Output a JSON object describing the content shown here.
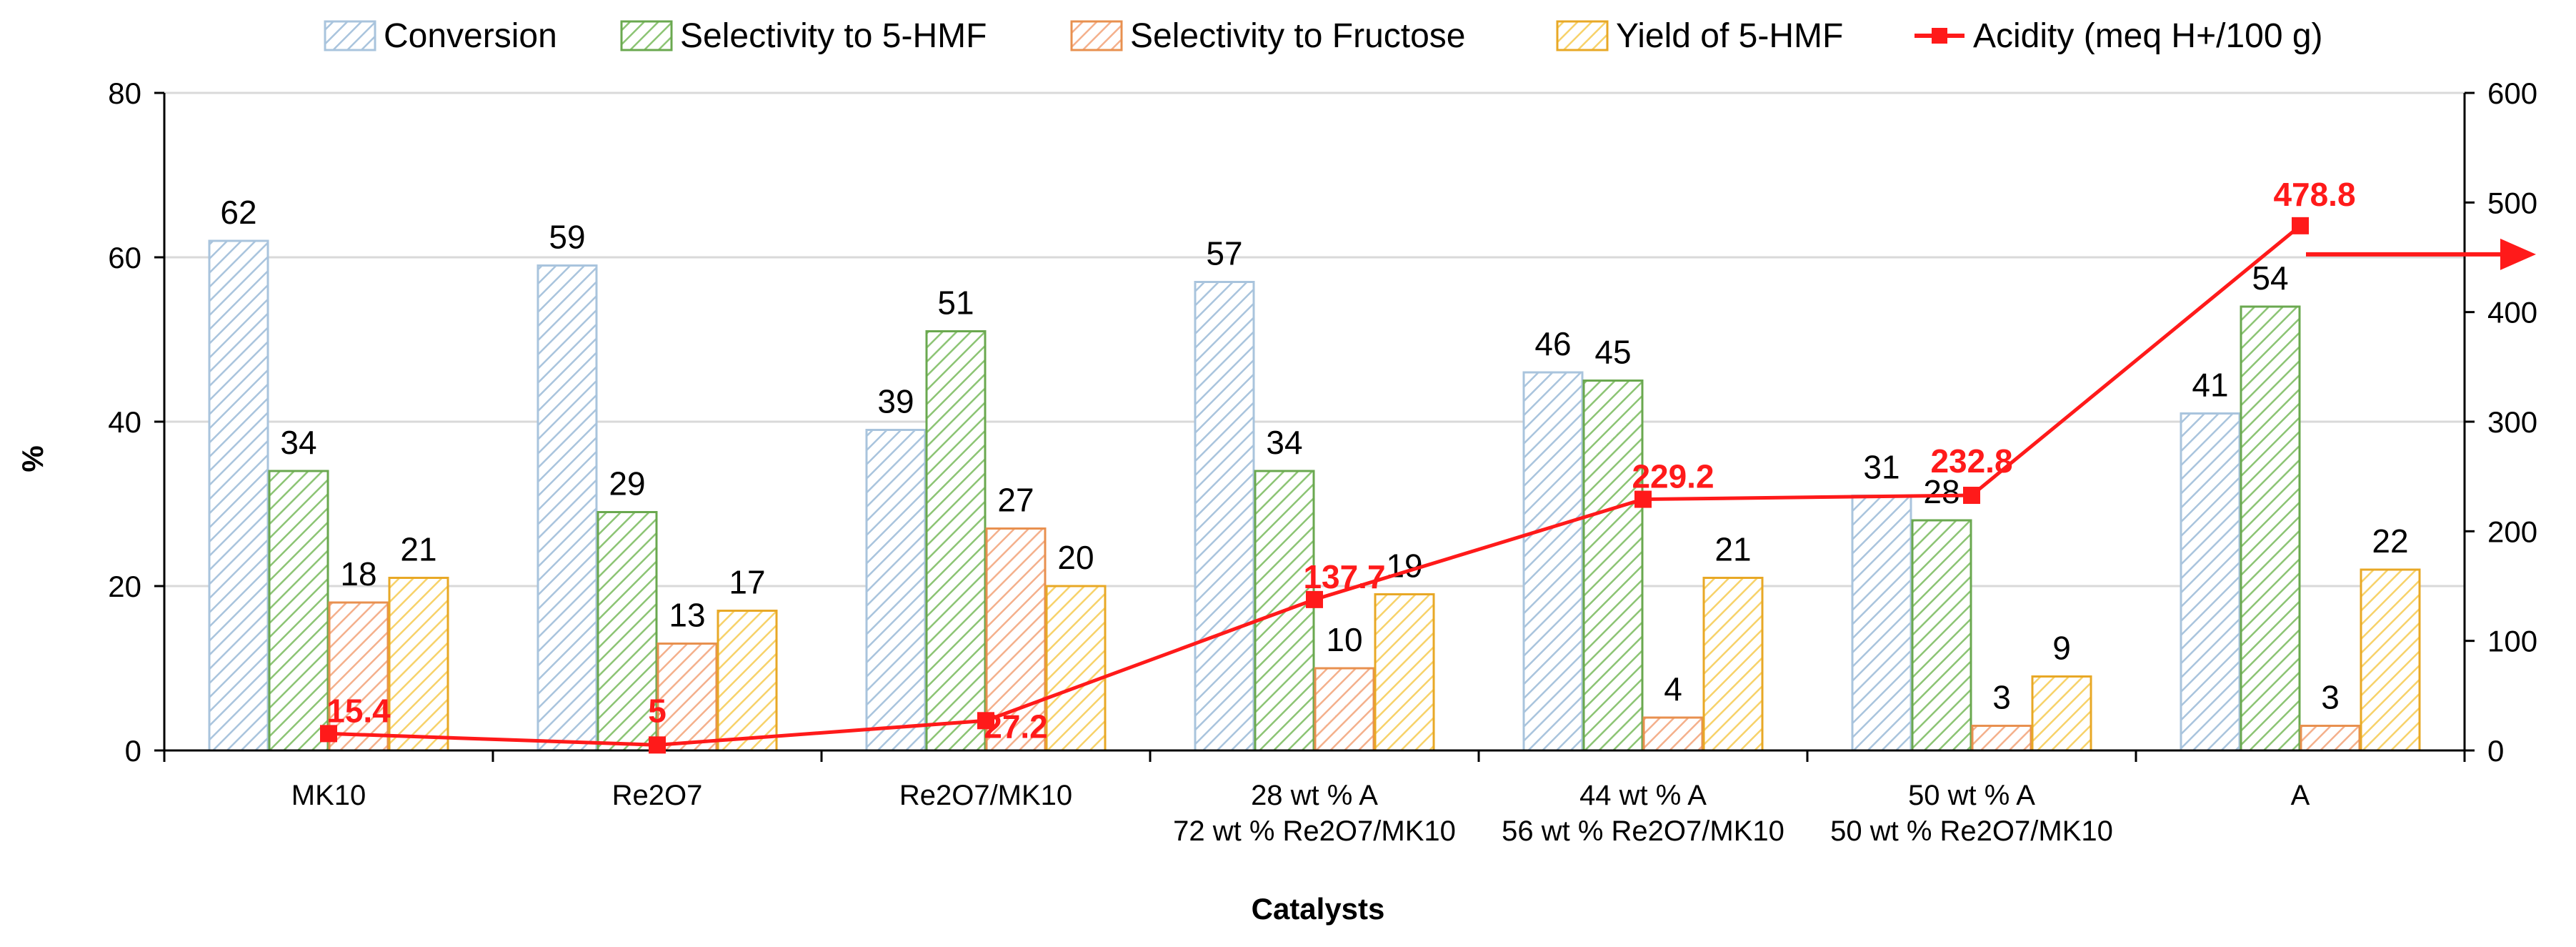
{
  "chart_data": {
    "type": "bar",
    "title": "",
    "xlabel": "Catalysts",
    "ylabel": "%",
    "ylim": [
      0,
      80
    ],
    "yticks": [
      0,
      20,
      40,
      60,
      80
    ],
    "y2lim": [
      0,
      600
    ],
    "y2ticks": [
      0,
      100,
      200,
      300,
      400,
      500,
      600
    ],
    "grid": true,
    "legend_position": "top",
    "categories": [
      [
        "MK10"
      ],
      [
        "Re2O7"
      ],
      [
        "Re2O7/MK10"
      ],
      [
        "28 wt % A",
        "72 wt % Re2O7/MK10"
      ],
      [
        "44 wt % A",
        "56 wt % Re2O7/MK10"
      ],
      [
        "50 wt % A",
        "50 wt % Re2O7/MK10"
      ],
      [
        "A"
      ]
    ],
    "series": [
      {
        "name": "Conversion",
        "type": "bar",
        "axis": "left",
        "values": [
          62,
          59,
          39,
          57,
          46,
          31,
          41
        ],
        "color": "#a9c4dd"
      },
      {
        "name": "Selectivity to 5-HMF",
        "type": "bar",
        "axis": "left",
        "values": [
          34,
          29,
          51,
          34,
          45,
          28,
          54
        ],
        "color": "#6aa84f"
      },
      {
        "name": "Selectivity to Fructose",
        "type": "bar",
        "axis": "left",
        "values": [
          18,
          13,
          27,
          10,
          4,
          3,
          3
        ],
        "color": "#f0a070"
      },
      {
        "name": "Yield of 5-HMF",
        "type": "bar",
        "axis": "left",
        "values": [
          21,
          17,
          20,
          19,
          21,
          9,
          22
        ],
        "color": "#f5c242"
      },
      {
        "name": "Acidity (meq H+/100 g)",
        "type": "line",
        "axis": "right",
        "values": [
          15.4,
          5,
          27.2,
          137.7,
          229.2,
          232.8,
          478.8
        ],
        "color": "#ff1a1a"
      }
    ]
  }
}
